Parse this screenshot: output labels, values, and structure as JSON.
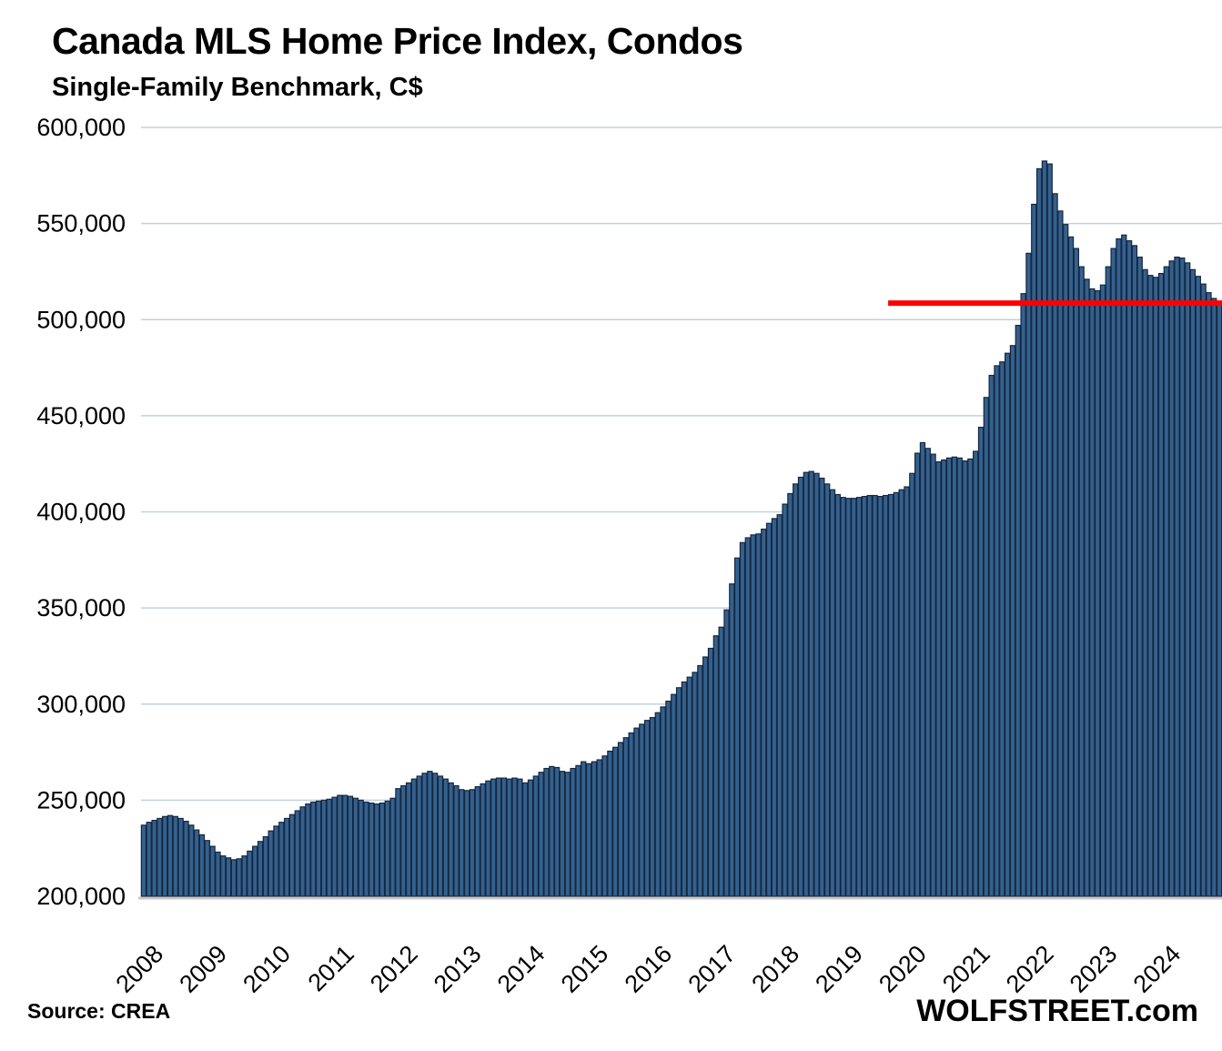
{
  "header": {
    "title": "Canada MLS Home Price Index, Condos",
    "subtitle": "Single-Family Benchmark, C$"
  },
  "footer": {
    "source": "Source: CREA",
    "branding": "WOLFSTREET.com"
  },
  "chart_data": {
    "type": "bar",
    "title": "Canada MLS Home Price Index, Condos",
    "subtitle": "Single-Family Benchmark, C$",
    "frequency": "monthly",
    "ylim": [
      200000,
      600000
    ],
    "grid": true,
    "gridline_color": "#c2d1df",
    "bar_color": "#33618f",
    "bar_border_color": "#17263d",
    "axis_line_color": "#c9c9c9",
    "yticks": [
      {
        "value": 600000,
        "label": "600,000"
      },
      {
        "value": 550000,
        "label": "550,000"
      },
      {
        "value": 500000,
        "label": "500,000"
      },
      {
        "value": 450000,
        "label": "450,000"
      },
      {
        "value": 400000,
        "label": "400,000"
      },
      {
        "value": 350000,
        "label": "350,000"
      },
      {
        "value": 300000,
        "label": "300,000"
      },
      {
        "value": 250000,
        "label": "250,000"
      },
      {
        "value": 200000,
        "label": "200,000"
      }
    ],
    "x_years": [
      "2008",
      "2009",
      "2010",
      "2011",
      "2012",
      "2013",
      "2014",
      "2015",
      "2016",
      "2017",
      "2018",
      "2019",
      "2020",
      "2021",
      "2022",
      "2023",
      "2024"
    ],
    "red_line": {
      "value": 508600,
      "start_year": 2019,
      "start_month": 10,
      "extends_to": "right edge",
      "color": "#ff0000"
    },
    "series": [
      {
        "name": "Condo benchmark price, C$",
        "values_by_year": {
          "2008": [
            237000,
            238500,
            239500,
            240500,
            241500,
            242000,
            241500,
            240500,
            239000,
            237000,
            234500,
            232000
          ],
          "2009": [
            229000,
            226000,
            223000,
            221000,
            220000,
            219000,
            219500,
            221000,
            223500,
            226000,
            228500,
            231000
          ],
          "2010": [
            234000,
            236500,
            238500,
            240500,
            242500,
            244500,
            246500,
            248000,
            249000,
            249500,
            250000,
            250500
          ],
          "2011": [
            251500,
            252500,
            252500,
            252000,
            251000,
            250000,
            249000,
            248500,
            248000,
            248500,
            249500,
            251000
          ],
          "2012": [
            256000,
            257500,
            259000,
            261000,
            262500,
            264000,
            265000,
            264000,
            262500,
            261000,
            259000,
            257500
          ],
          "2013": [
            255500,
            255000,
            255500,
            257000,
            258500,
            260000,
            261000,
            261500,
            261500,
            261000,
            261500,
            261000
          ],
          "2014": [
            259000,
            260500,
            262500,
            264500,
            266500,
            267500,
            267000,
            265000,
            264500,
            266500,
            268000,
            270000
          ],
          "2015": [
            269000,
            270000,
            271000,
            273000,
            275500,
            277500,
            280000,
            282500,
            285000,
            287500,
            289500,
            291500
          ],
          "2016": [
            293000,
            295500,
            298500,
            301500,
            305000,
            308500,
            311500,
            314000,
            316500,
            320000,
            324500,
            329000
          ],
          "2017": [
            335500,
            340000,
            349000,
            362500,
            376000,
            384000,
            386500,
            388000,
            388500,
            391000,
            394000,
            396500
          ],
          "2018": [
            398500,
            404000,
            409500,
            414500,
            418000,
            420500,
            421000,
            420000,
            417500,
            414500,
            411500,
            409000
          ],
          "2019": [
            407500,
            407000,
            407000,
            407500,
            408000,
            408500,
            408500,
            408000,
            408500,
            409000,
            410000,
            411500
          ],
          "2020": [
            413000,
            420000,
            430500,
            436000,
            433000,
            430000,
            426000,
            427000,
            428000,
            428500,
            428000,
            426500
          ],
          "2021": [
            427500,
            431500,
            444000,
            459500,
            471000,
            476000,
            478000,
            482500,
            486500,
            497000,
            513500,
            534500
          ],
          "2022": [
            560000,
            578500,
            582500,
            581000,
            565500,
            556500,
            549500,
            543000,
            537000,
            527500,
            521000,
            516000
          ],
          "2023": [
            515000,
            518000,
            527500,
            537000,
            542000,
            544000,
            541000,
            538500,
            532500,
            526000,
            523000,
            522000
          ],
          "2024": [
            524000,
            527500,
            530500,
            532500,
            532000,
            529500,
            526000,
            522500,
            518500,
            514000,
            511000,
            508600
          ]
        }
      }
    ]
  }
}
